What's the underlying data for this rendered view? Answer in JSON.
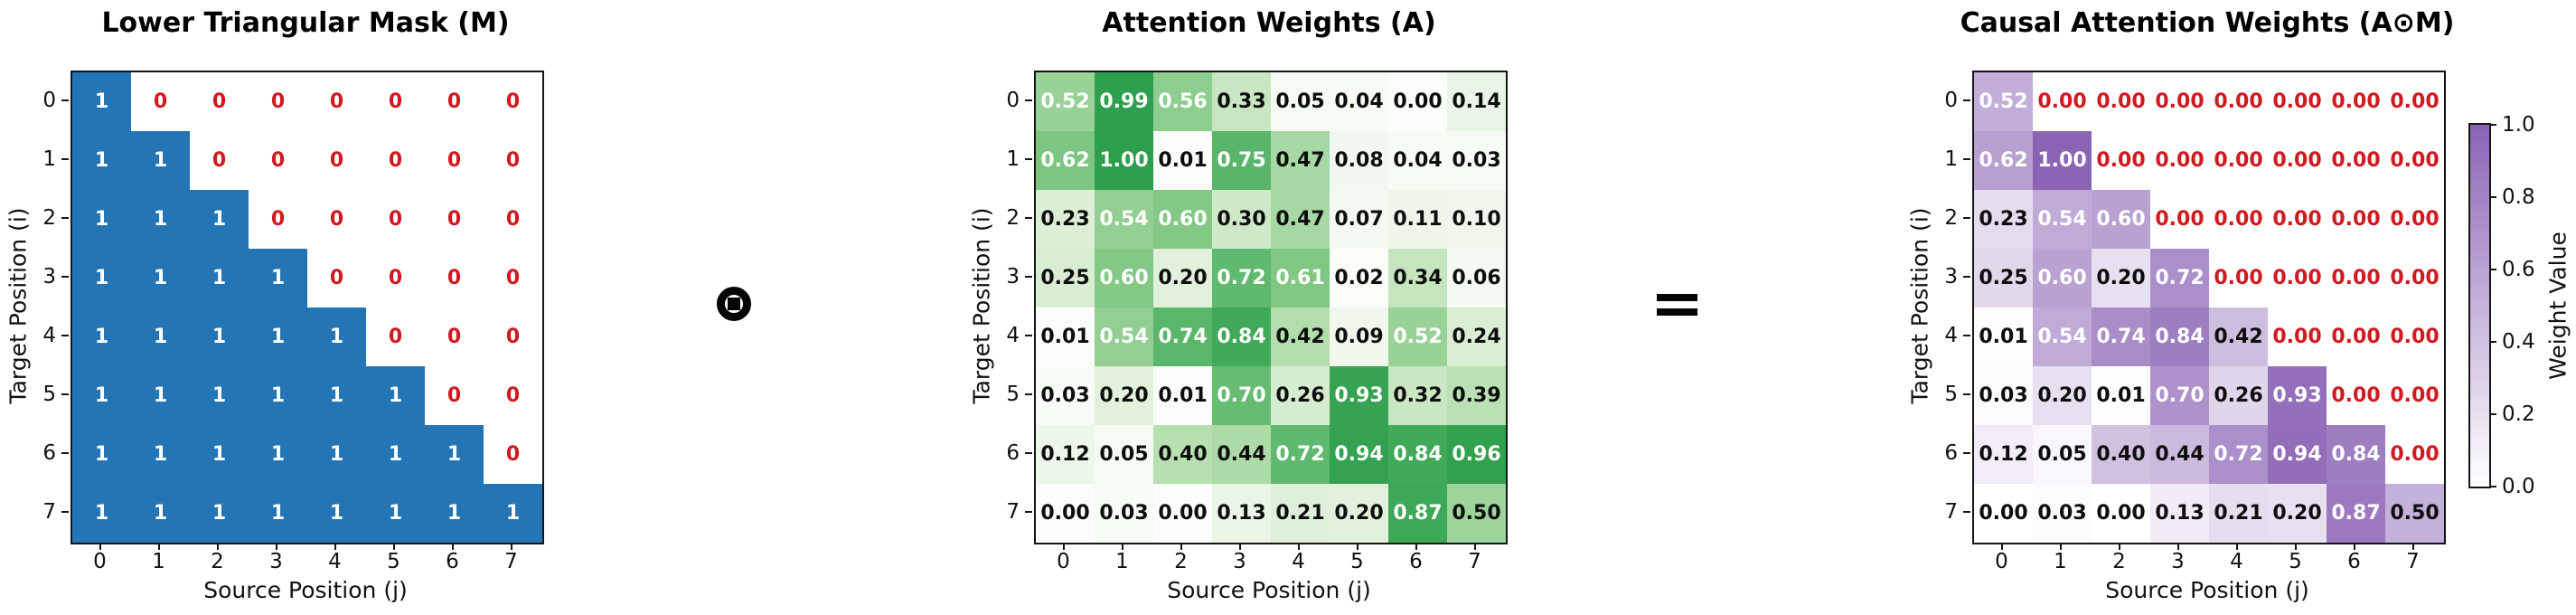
{
  "figure": {
    "operators": [
      {
        "name": "elementwise-product",
        "symbol": "⊙"
      },
      {
        "name": "equals",
        "symbol": "="
      }
    ],
    "colorbar": {
      "label": "Weight Value",
      "ticks": [
        "1.0",
        "0.8",
        "0.6",
        "0.4",
        "0.2",
        "0.0"
      ],
      "min_color": "#ffffff",
      "max_color": "#8c64b6"
    },
    "colors": {
      "mask_fill": "#2375b5",
      "mask_one_text": "#ffffff",
      "zero_text": "#d01a20",
      "value_text_dark": "#0d0d0d",
      "value_text_light": "#ffffff",
      "axis_color": "#151515",
      "green_stops": [
        [
          0.0,
          "#fbfdfa"
        ],
        [
          0.1,
          "#eff7ec"
        ],
        [
          0.2,
          "#e1f1dc"
        ],
        [
          0.3,
          "#cfe9c8"
        ],
        [
          0.4,
          "#b7e0b1"
        ],
        [
          0.5,
          "#9dd49b"
        ],
        [
          0.6,
          "#83c885"
        ],
        [
          0.72,
          "#5fb96e"
        ],
        [
          0.85,
          "#3fa957"
        ],
        [
          1.0,
          "#2d9e4b"
        ]
      ],
      "purple_stops": [
        [
          0.0,
          "#ffffff"
        ],
        [
          0.5,
          "#c4b1d9"
        ],
        [
          1.0,
          "#8c64b6"
        ]
      ]
    }
  },
  "chart_data": [
    {
      "type": "heatmap",
      "title": "Lower Triangular Mask (M)",
      "xlabel": "Source Position (j)",
      "ylabel": "Target Position (i)",
      "xticklabels": [
        "0",
        "1",
        "2",
        "3",
        "4",
        "5",
        "6",
        "7"
      ],
      "yticklabels": [
        "0",
        "1",
        "2",
        "3",
        "4",
        "5",
        "6",
        "7"
      ],
      "colormap": "binary-blue",
      "vmin": 0,
      "vmax": 1,
      "values": [
        [
          1,
          0,
          0,
          0,
          0,
          0,
          0,
          0
        ],
        [
          1,
          1,
          0,
          0,
          0,
          0,
          0,
          0
        ],
        [
          1,
          1,
          1,
          0,
          0,
          0,
          0,
          0
        ],
        [
          1,
          1,
          1,
          1,
          0,
          0,
          0,
          0
        ],
        [
          1,
          1,
          1,
          1,
          1,
          0,
          0,
          0
        ],
        [
          1,
          1,
          1,
          1,
          1,
          1,
          0,
          0
        ],
        [
          1,
          1,
          1,
          1,
          1,
          1,
          1,
          0
        ],
        [
          1,
          1,
          1,
          1,
          1,
          1,
          1,
          1
        ]
      ]
    },
    {
      "type": "heatmap",
      "title": "Attention Weights (A)",
      "xlabel": "Source Position (j)",
      "ylabel": "Target Position (i)",
      "xticklabels": [
        "0",
        "1",
        "2",
        "3",
        "4",
        "5",
        "6",
        "7"
      ],
      "yticklabels": [
        "0",
        "1",
        "2",
        "3",
        "4",
        "5",
        "6",
        "7"
      ],
      "colormap": "greens",
      "vmin": 0,
      "vmax": 1,
      "values": [
        [
          0.52,
          0.99,
          0.56,
          0.33,
          0.05,
          0.04,
          0.0,
          0.14
        ],
        [
          0.62,
          1.0,
          0.01,
          0.75,
          0.47,
          0.08,
          0.04,
          0.03
        ],
        [
          0.23,
          0.54,
          0.6,
          0.3,
          0.47,
          0.07,
          0.11,
          0.1
        ],
        [
          0.25,
          0.6,
          0.2,
          0.72,
          0.61,
          0.02,
          0.34,
          0.06
        ],
        [
          0.01,
          0.54,
          0.74,
          0.84,
          0.42,
          0.09,
          0.52,
          0.24
        ],
        [
          0.03,
          0.2,
          0.01,
          0.7,
          0.26,
          0.93,
          0.32,
          0.39
        ],
        [
          0.12,
          0.05,
          0.4,
          0.44,
          0.72,
          0.94,
          0.84,
          0.96
        ],
        [
          0.0,
          0.03,
          0.0,
          0.13,
          0.21,
          0.2,
          0.87,
          0.5
        ]
      ]
    },
    {
      "type": "heatmap",
      "title": "Causal Attention Weights (A⊙M)",
      "xlabel": "Source Position (j)",
      "ylabel": "Target Position (i)",
      "xticklabels": [
        "0",
        "1",
        "2",
        "3",
        "4",
        "5",
        "6",
        "7"
      ],
      "yticklabels": [
        "0",
        "1",
        "2",
        "3",
        "4",
        "5",
        "6",
        "7"
      ],
      "colormap": "purples",
      "vmin": 0,
      "vmax": 1,
      "masked_above_diagonal": true,
      "values": [
        [
          0.52,
          0.0,
          0.0,
          0.0,
          0.0,
          0.0,
          0.0,
          0.0
        ],
        [
          0.62,
          1.0,
          0.0,
          0.0,
          0.0,
          0.0,
          0.0,
          0.0
        ],
        [
          0.23,
          0.54,
          0.6,
          0.0,
          0.0,
          0.0,
          0.0,
          0.0
        ],
        [
          0.25,
          0.6,
          0.2,
          0.72,
          0.0,
          0.0,
          0.0,
          0.0
        ],
        [
          0.01,
          0.54,
          0.74,
          0.84,
          0.42,
          0.0,
          0.0,
          0.0
        ],
        [
          0.03,
          0.2,
          0.01,
          0.7,
          0.26,
          0.93,
          0.0,
          0.0
        ],
        [
          0.12,
          0.05,
          0.4,
          0.44,
          0.72,
          0.94,
          0.84,
          0.0
        ],
        [
          0.0,
          0.03,
          0.0,
          0.13,
          0.21,
          0.2,
          0.87,
          0.5
        ]
      ]
    }
  ]
}
